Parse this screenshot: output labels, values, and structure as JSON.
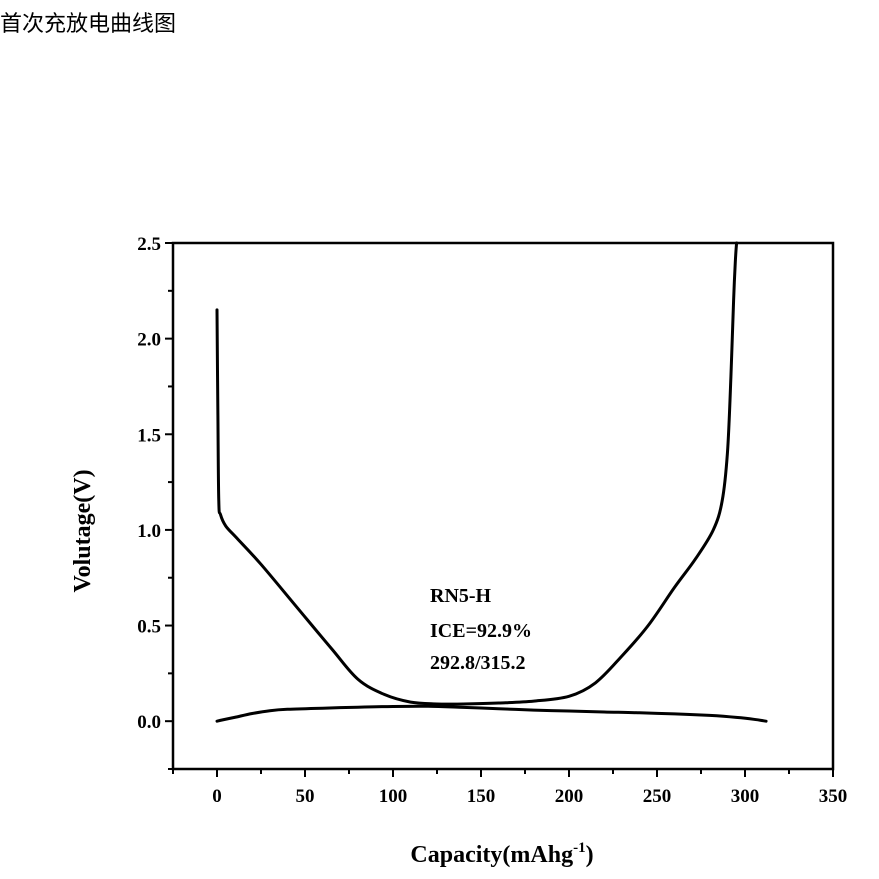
{
  "page_title": "首次充放电曲线图",
  "chart_data": {
    "type": "line",
    "xlabel": "Capacity(mAhg",
    "xlabel_sup": "-1",
    "xlabel_close": ")",
    "ylabel": "Volutage(V)",
    "xlim": [
      -25,
      350
    ],
    "ylim": [
      -0.25,
      2.5
    ],
    "xticks": [
      0,
      50,
      100,
      150,
      200,
      250,
      300,
      350
    ],
    "xtick_labels": [
      "0",
      "50",
      "100",
      "150",
      "200",
      "250",
      "300",
      "350"
    ],
    "yticks": [
      0.0,
      0.5,
      1.0,
      1.5,
      2.0,
      2.5
    ],
    "ytick_labels": [
      "0.0",
      "0.5",
      "1.0",
      "1.5",
      "2.0",
      "2.5"
    ],
    "annotation": [
      "RN5-H",
      "ICE=92.9%",
      "292.8/315.2"
    ],
    "line_color": "#000000",
    "series": [
      {
        "x": [
          0,
          0.5,
          1,
          2,
          5,
          12,
          25,
          45,
          65,
          80,
          95,
          110,
          125,
          140,
          160,
          180,
          200,
          215,
          230,
          245,
          260,
          272,
          282,
          287,
          290,
          292,
          293.5,
          294.5,
          295.2
        ],
        "y": [
          2.15,
          1.6,
          1.15,
          1.08,
          1.02,
          0.95,
          0.82,
          0.6,
          0.38,
          0.22,
          0.14,
          0.1,
          0.09,
          0.09,
          0.095,
          0.105,
          0.13,
          0.2,
          0.34,
          0.5,
          0.7,
          0.85,
          1.0,
          1.15,
          1.4,
          1.8,
          2.2,
          2.4,
          2.5
        ]
      },
      {
        "x": [
          0,
          10,
          20,
          30,
          40,
          60,
          80,
          100,
          120,
          140,
          160,
          180,
          200,
          220,
          240,
          260,
          280,
          295,
          305,
          312
        ],
        "y": [
          0.0,
          0.02,
          0.04,
          0.055,
          0.062,
          0.068,
          0.073,
          0.077,
          0.078,
          0.072,
          0.065,
          0.058,
          0.053,
          0.048,
          0.044,
          0.038,
          0.03,
          0.02,
          0.01,
          0.0
        ]
      }
    ]
  }
}
